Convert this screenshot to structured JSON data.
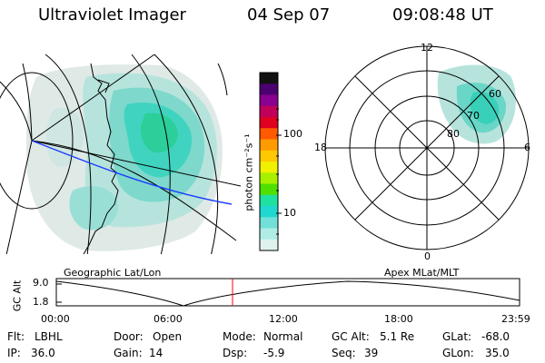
{
  "header": {
    "instrument": "Ultraviolet Imager",
    "date": "04 Sep 07",
    "time": "09:08:48 UT"
  },
  "colorbar": {
    "unit_label": "photon cm⁻²s⁻¹",
    "ticks": [
      "100",
      "10"
    ],
    "colors": [
      "#111111",
      "#4b0070",
      "#8a0090",
      "#c0005a",
      "#e00020",
      "#ff5a00",
      "#ff9a00",
      "#ffc800",
      "#f0f000",
      "#a8f000",
      "#50e000",
      "#20e0a0",
      "#20d8d0",
      "#70e0d8",
      "#b0ece6",
      "#e0f2ee"
    ]
  },
  "polar_plot": {
    "mlt_labels": {
      "top": "12",
      "bottom": "0",
      "left": "18",
      "right": "6"
    },
    "lat_labels": [
      "60",
      "70",
      "80"
    ]
  },
  "panel_labels": {
    "left": "Geographic Lat/Lon",
    "right": "Apex MLat/MLT"
  },
  "altitude_plot": {
    "axis_label": "GC Alt",
    "y_ticks": [
      "9.0",
      "1.8"
    ],
    "x_ticks": [
      "00:00",
      "06:00",
      "12:00",
      "18:00",
      "23:59"
    ],
    "marker_color": "#ff0000",
    "line_color": "#000000"
  },
  "status": {
    "flt_label": "Flt:",
    "flt_value": "LBHL",
    "ip_label": "IP:",
    "ip_value": "36.0",
    "door_label": "Door:",
    "door_value": "Open",
    "gain_label": "Gain:",
    "gain_value": "14",
    "mode_label": "Mode:",
    "mode_value": "Normal",
    "dsp_label": "Dsp:",
    "dsp_value": "-5.9",
    "gcalt_label": "GC Alt:",
    "gcalt_value": "5.1 Re",
    "seq_label": "Seq:",
    "seq_value": "39",
    "glat_label": "GLat:",
    "glat_value": "-68.0",
    "glon_label": "GLon:",
    "glon_value": "35.0"
  }
}
